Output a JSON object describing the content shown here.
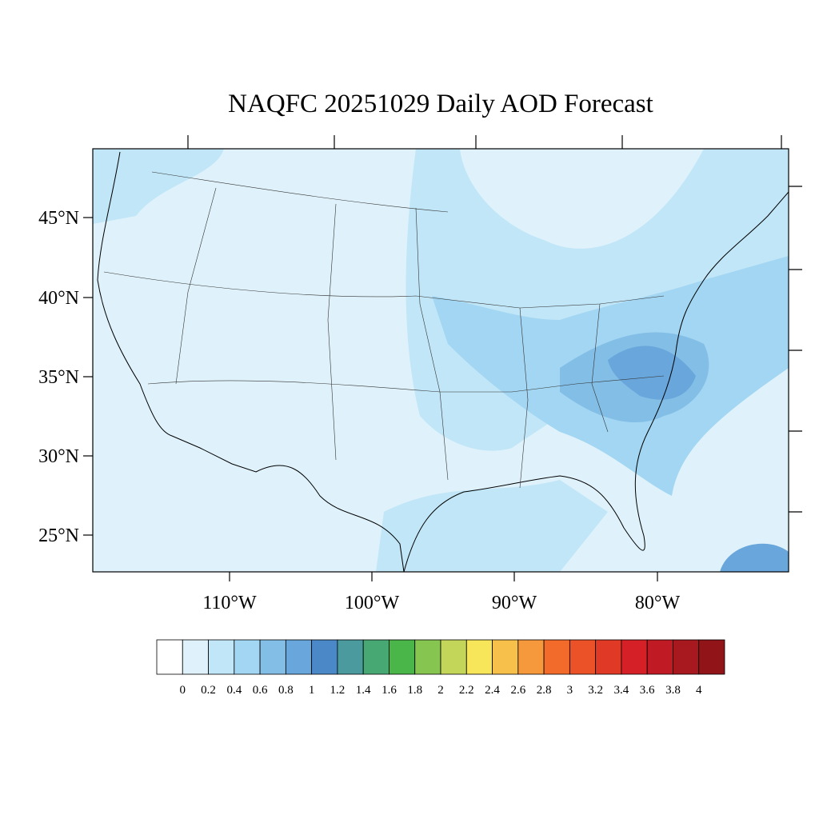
{
  "title": "NAQFC 20251029 Daily AOD Forecast",
  "map": {
    "lat_labels": [
      "45°N",
      "40°N",
      "35°N",
      "30°N",
      "25°N"
    ],
    "lon_labels": [
      "110°W",
      "100°W",
      "90°W",
      "80°W"
    ]
  },
  "colorbar": {
    "levels": [
      0,
      0.2,
      0.4,
      0.6,
      0.8,
      1,
      1.2,
      1.4,
      1.6,
      1.8,
      2,
      2.2,
      2.4,
      2.6,
      2.8,
      3,
      3.2,
      3.4,
      3.6,
      3.8,
      4
    ],
    "colors": [
      "#ffffff",
      "#dff2fb",
      "#c0e6f7",
      "#a2d6f2",
      "#82bee6",
      "#68a6db",
      "#4a88c8",
      "#4a9a9e",
      "#48a874",
      "#4ab64a",
      "#86c550",
      "#c4d65a",
      "#f7e65a",
      "#f7c04a",
      "#f6983c",
      "#f26b2a",
      "#eb5228",
      "#e03a26",
      "#d62028",
      "#c01a24",
      "#a8181f",
      "#901418"
    ]
  }
}
